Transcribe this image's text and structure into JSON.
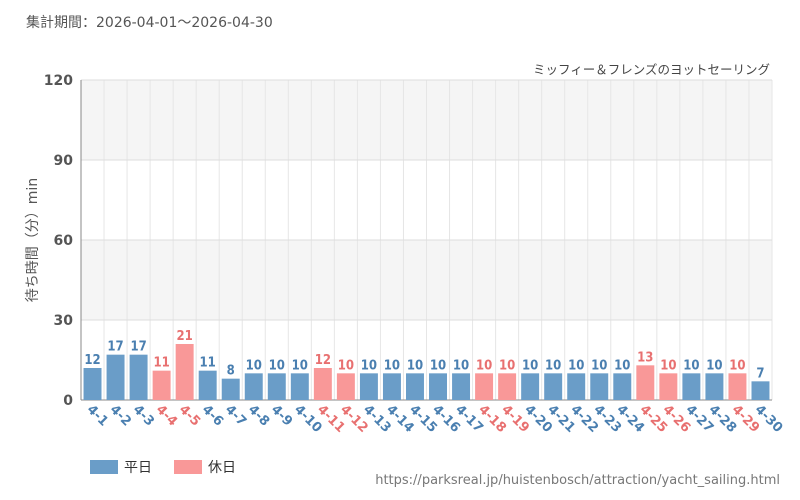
{
  "header": {
    "period_label": "集計期間：2026-04-01～2026-04-30"
  },
  "footer": {
    "source_url": "https://parksreal.jp/huistenbosch/attraction/yacht_sailing.html"
  },
  "colors": {
    "weekday": "#6a9dc8",
    "holiday": "#f99898",
    "weekday_text": "#4a7fb0",
    "holiday_text": "#e87070",
    "grid": "#e6e6e6",
    "band": "#f5f5f5"
  },
  "chart_data": {
    "type": "bar",
    "title": "ミッフィー＆フレンズのヨットセーリング",
    "ylabel": "待ち時間（分）min",
    "xlabel": "",
    "ylim": [
      0,
      120
    ],
    "yticks": [
      0,
      30,
      60,
      90,
      120
    ],
    "grid": true,
    "legend_position": "bottom-left",
    "legend": [
      {
        "key": "weekday",
        "label": "平日"
      },
      {
        "key": "holiday",
        "label": "休日"
      }
    ],
    "categories": [
      "4-1",
      "4-2",
      "4-3",
      "4-4",
      "4-5",
      "4-6",
      "4-7",
      "4-8",
      "4-9",
      "4-10",
      "4-11",
      "4-12",
      "4-13",
      "4-14",
      "4-15",
      "4-16",
      "4-17",
      "4-18",
      "4-19",
      "4-20",
      "4-21",
      "4-22",
      "4-23",
      "4-24",
      "4-25",
      "4-26",
      "4-27",
      "4-28",
      "4-29",
      "4-30"
    ],
    "values": [
      12,
      17,
      17,
      11,
      21,
      11,
      8,
      10,
      10,
      10,
      12,
      10,
      10,
      10,
      10,
      10,
      10,
      10,
      10,
      10,
      10,
      10,
      10,
      10,
      13,
      10,
      10,
      10,
      10,
      7
    ],
    "day_type": [
      "weekday",
      "weekday",
      "weekday",
      "holiday",
      "holiday",
      "weekday",
      "weekday",
      "weekday",
      "weekday",
      "weekday",
      "holiday",
      "holiday",
      "weekday",
      "weekday",
      "weekday",
      "weekday",
      "weekday",
      "holiday",
      "holiday",
      "weekday",
      "weekday",
      "weekday",
      "weekday",
      "weekday",
      "holiday",
      "holiday",
      "weekday",
      "weekday",
      "holiday",
      "weekday"
    ]
  }
}
